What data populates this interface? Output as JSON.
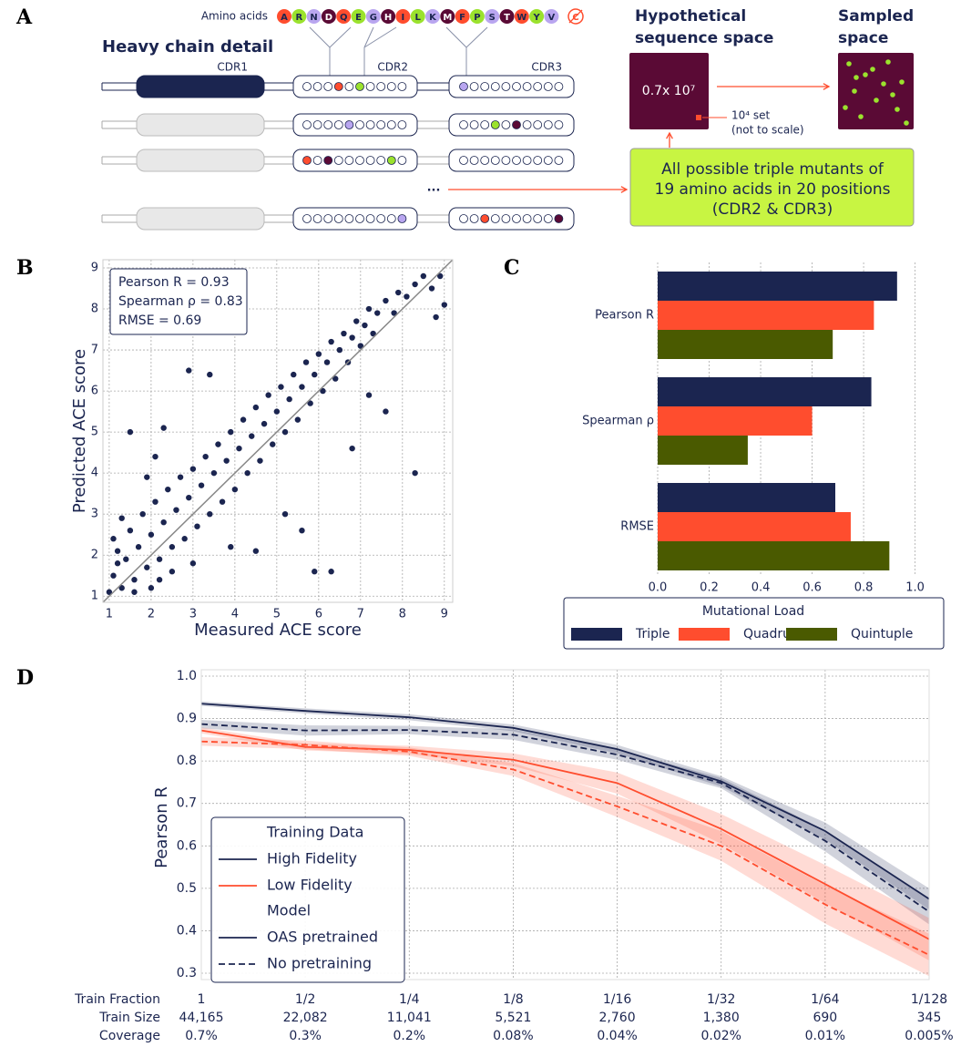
{
  "panel_labels": [
    "A",
    "B",
    "C",
    "D"
  ],
  "diagram": {
    "amino_acids_label": "Amino acids",
    "amino_acids": [
      "A",
      "R",
      "N",
      "D",
      "Q",
      "E",
      "G",
      "H",
      "I",
      "L",
      "K",
      "M",
      "F",
      "P",
      "S",
      "T",
      "W",
      "Y",
      "V"
    ],
    "excluded_amino_acid": "C",
    "heavy_chain_label": "Heavy chain detail",
    "regions": [
      "CDR1",
      "CDR2",
      "CDR3"
    ],
    "ellipsis": "...",
    "sequence_space": {
      "title": [
        "Hypothetical",
        "sequence space"
      ],
      "size_label": "0.7x 10⁷"
    },
    "sampled_space": {
      "title": [
        "Sampled",
        "space"
      ]
    },
    "set_note": [
      "10⁴ set",
      "(not to scale)"
    ],
    "library_description": [
      "All possible triple mutants of",
      "19 amino acids in 20 positions",
      "(CDR2 & CDR3)"
    ]
  },
  "chart_data": [
    {
      "type": "scatter",
      "color": "#1b2550",
      "xlabel": "Measured ACE score",
      "ylabel": "Predicted ACE score",
      "xlim": [
        0.85,
        9.2
      ],
      "ylim": [
        0.85,
        9.2
      ],
      "xticks": [
        1,
        2,
        3,
        4,
        5,
        6,
        7,
        8,
        9
      ],
      "yticks": [
        1,
        2,
        3,
        4,
        5,
        6,
        7,
        8,
        9
      ],
      "grid": true,
      "annotation": [
        "Pearson R = 0.93",
        "Spearman ρ = 0.83",
        "RMSE = 0.69"
      ],
      "x": [
        1.1,
        1.2,
        1.3,
        1.4,
        1.5,
        1.6,
        1.7,
        1.8,
        1.9,
        2.0,
        2.1,
        2.2,
        2.3,
        2.4,
        2.5,
        2.6,
        2.7,
        2.8,
        2.9,
        3.0,
        3.1,
        3.2,
        3.3,
        3.4,
        3.5,
        3.6,
        3.7,
        3.8,
        3.9,
        4.0,
        4.1,
        4.2,
        4.3,
        4.4,
        4.5,
        4.6,
        4.7,
        4.8,
        4.9,
        5.0,
        5.1,
        5.2,
        5.3,
        5.4,
        5.5,
        5.6,
        5.7,
        5.8,
        5.9,
        6.0,
        6.1,
        6.2,
        6.3,
        6.4,
        6.5,
        6.6,
        6.7,
        6.8,
        6.9,
        7.0,
        7.1,
        7.2,
        7.3,
        7.4,
        7.6,
        7.8,
        7.9,
        8.1,
        8.3,
        8.5,
        8.7,
        8.9,
        9.0,
        8.8,
        2.3,
        2.9,
        3.4,
        1.5,
        7.6,
        6.3,
        5.9,
        4.5,
        5.2,
        8.3,
        3.9,
        2.1,
        1.9,
        6.8,
        7.2,
        5.6,
        1.0,
        1.1,
        1.2,
        1.3,
        1.6,
        2.0,
        2.5,
        3.0,
        2.2
      ],
      "values": [
        1.5,
        2.1,
        1.2,
        1.9,
        2.6,
        1.4,
        2.2,
        3.0,
        1.7,
        2.5,
        3.3,
        1.9,
        2.8,
        3.6,
        2.2,
        3.1,
        3.9,
        2.4,
        3.4,
        4.1,
        2.7,
        3.7,
        4.4,
        3.0,
        4.0,
        4.7,
        3.3,
        4.3,
        5.0,
        3.6,
        4.6,
        5.3,
        4.0,
        4.9,
        5.6,
        4.3,
        5.2,
        5.9,
        4.7,
        5.5,
        6.1,
        5.0,
        5.8,
        6.4,
        5.3,
        6.1,
        6.7,
        5.7,
        6.4,
        6.9,
        6.0,
        6.7,
        7.2,
        6.3,
        7.0,
        7.4,
        6.7,
        7.3,
        7.7,
        7.1,
        7.6,
        8.0,
        7.4,
        7.9,
        8.2,
        7.9,
        8.4,
        8.3,
        8.6,
        8.8,
        8.5,
        8.8,
        8.1,
        7.8,
        5.1,
        6.5,
        6.4,
        5.0,
        5.5,
        1.6,
        1.6,
        2.1,
        3.0,
        4.0,
        2.2,
        4.4,
        3.9,
        4.6,
        5.9,
        2.6,
        1.1,
        2.4,
        1.8,
        2.9,
        1.1,
        1.2,
        1.6,
        1.8,
        1.4
      ]
    },
    {
      "type": "bar",
      "orientation": "horizontal",
      "categories": [
        "Pearson R",
        "Spearman ρ",
        "RMSE"
      ],
      "series": [
        {
          "name": "Triple",
          "color": "#1b2550",
          "values": [
            0.93,
            0.83,
            0.69
          ]
        },
        {
          "name": "Quadruple",
          "color": "#ff4d2e",
          "values": [
            0.84,
            0.6,
            0.75
          ]
        },
        {
          "name": "Quintuple",
          "color": "#4a5a00",
          "values": [
            0.68,
            0.35,
            0.9
          ]
        }
      ],
      "xlim": [
        0,
        1.15
      ],
      "xticks": [
        {
          "value": 0,
          "label": "0.0"
        },
        0.2,
        0.4,
        0.6,
        0.8,
        {
          "value": 1,
          "label": "1.0"
        }
      ],
      "grid": true,
      "legend_title": "Mutational Load",
      "legend_position": "bottom"
    },
    {
      "type": "line",
      "categories": [
        "1",
        "1/2",
        "1/4",
        "1/8",
        "1/16",
        "1/32",
        "1/64",
        "1/128"
      ],
      "category_rows": {
        "labels": [
          "Train Fraction",
          "Train Size",
          "Coverage"
        ],
        "train_size": [
          "44,165",
          "22,082",
          "11,041",
          "5,521",
          "2,760",
          "1,380",
          "690",
          "345"
        ],
        "coverage": [
          "0.7%",
          "0.3%",
          "0.2%",
          "0.08%",
          "0.04%",
          "0.02%",
          "0.01%",
          "0.005%"
        ]
      },
      "ylabel": "Pearson R",
      "ylim": [
        0.285,
        1.015
      ],
      "yticks": [
        0.3,
        0.4,
        0.5,
        0.6,
        0.7,
        0.8,
        0.9,
        {
          "value": 1,
          "label": "1.0"
        }
      ],
      "grid": true,
      "legend_position": "lower left",
      "training_data": {
        "title": "Training Data",
        "groups": [
          {
            "name": "High Fidelity",
            "color": "#1b2550",
            "series": [
              {
                "values": [
                  0.935,
                  0.918,
                  0.903,
                  0.878,
                  0.828,
                  0.752,
                  0.635,
                  0.475
                ],
                "errors": [
                  0.005,
                  0.006,
                  0.007,
                  0.008,
                  0.01,
                  0.012,
                  0.02,
                  0.025
                ]
              },
              {
                "values": [
                  0.887,
                  0.872,
                  0.873,
                  0.862,
                  0.815,
                  0.748,
                  0.612,
                  0.445
                ],
                "errors": [
                  0.01,
                  0.012,
                  0.01,
                  0.012,
                  0.012,
                  0.012,
                  0.025,
                  0.03
                ]
              }
            ]
          },
          {
            "name": "Low Fidelity",
            "color": "#ff4d2e",
            "series": [
              {
                "values": [
                  0.872,
                  0.833,
                  0.826,
                  0.803,
                  0.748,
                  0.64,
                  0.51,
                  0.38
                ],
                "errors": [
                  0.007,
                  0.008,
                  0.01,
                  0.015,
                  0.025,
                  0.035,
                  0.045,
                  0.05
                ]
              },
              {
                "values": [
                  0.846,
                  0.838,
                  0.822,
                  0.78,
                  0.693,
                  0.6,
                  0.462,
                  0.343
                ],
                "errors": [
                  0.01,
                  0.01,
                  0.01,
                  0.015,
                  0.025,
                  0.035,
                  0.045,
                  0.05
                ]
              }
            ]
          }
        ]
      },
      "model": {
        "title": "Model",
        "entries": [
          {
            "name": "OAS pretrained",
            "dash": "solid"
          },
          {
            "name": "No pretraining",
            "dash": "dashed"
          }
        ]
      }
    }
  ]
}
